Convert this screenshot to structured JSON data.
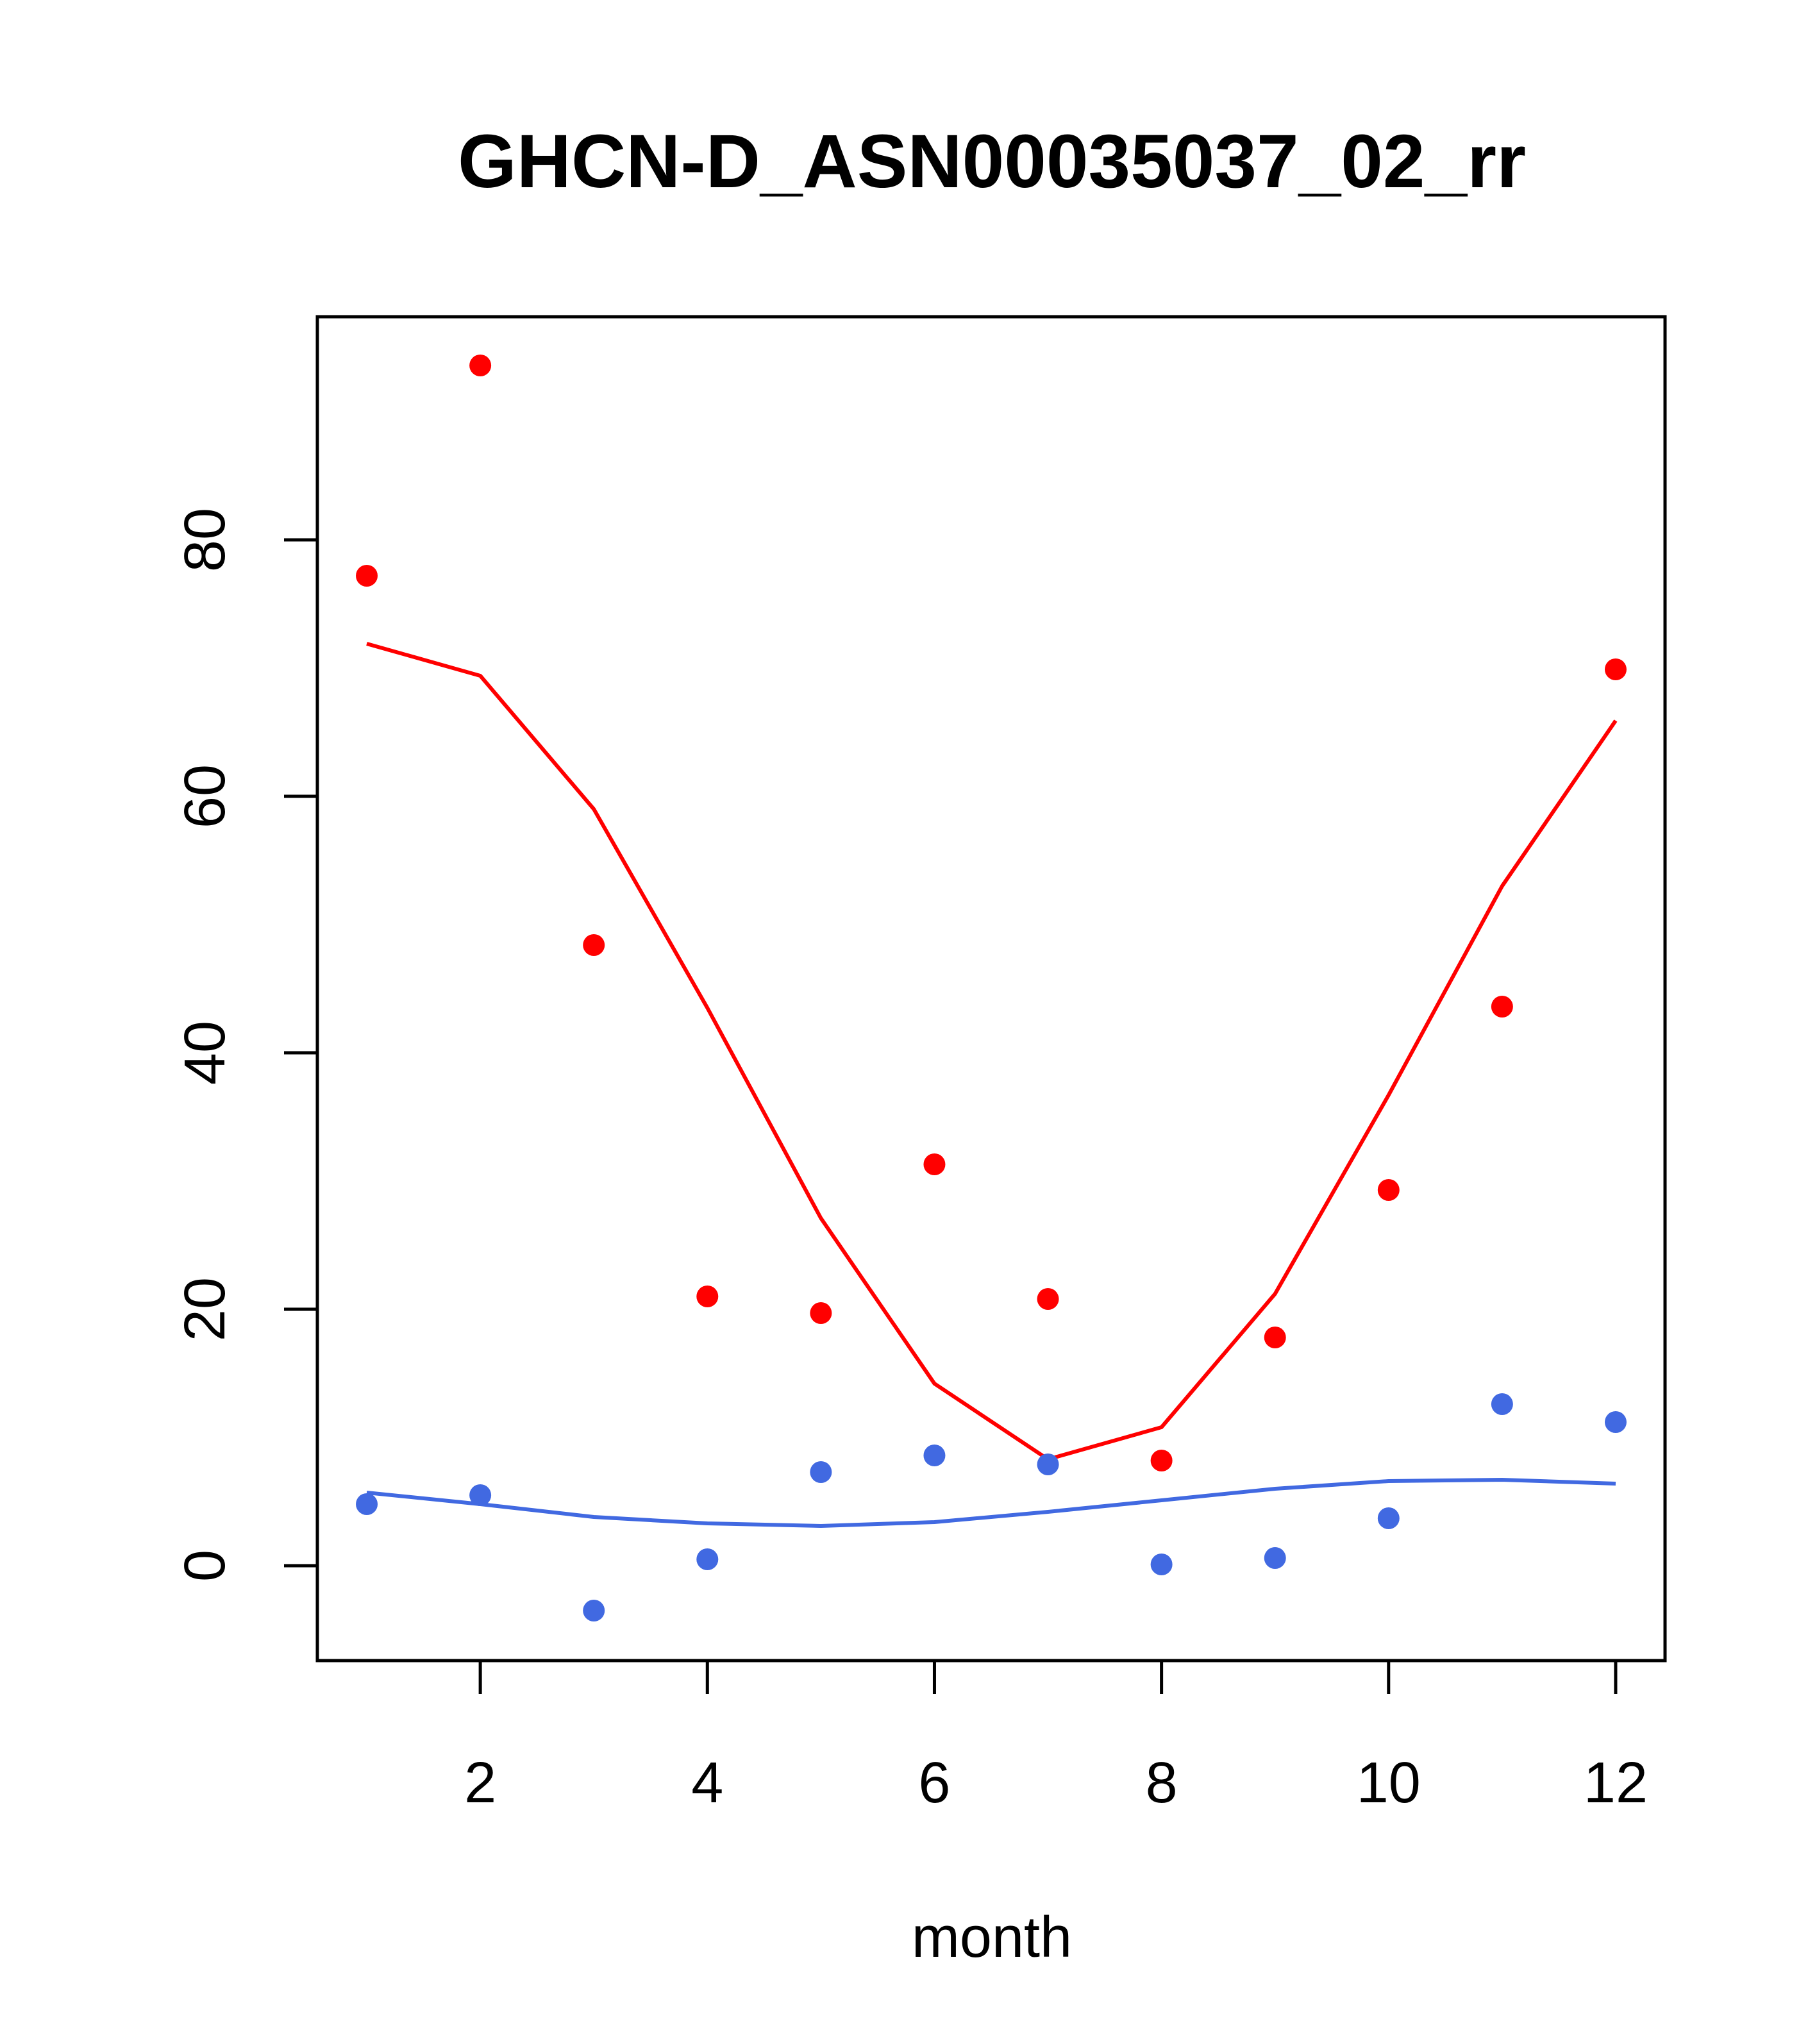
{
  "chart_data": {
    "type": "scatter",
    "title": "GHCN-D_ASN00035037_02_rr",
    "xlabel": "month",
    "ylabel": "",
    "xlim": [
      0.565,
      12.435
    ],
    "ylim": [
      -7.4,
      97.4
    ],
    "x_ticks": [
      2,
      4,
      6,
      8,
      10,
      12
    ],
    "y_ticks": [
      0,
      20,
      40,
      60,
      80
    ],
    "grid": false,
    "legend": "none",
    "x": [
      1,
      2,
      3,
      4,
      5,
      6,
      7,
      8,
      9,
      10,
      11,
      12
    ],
    "series": [
      {
        "color": "#ff0000",
        "points": [
          77.2,
          93.6,
          48.4,
          21.0,
          19.7,
          31.3,
          20.8,
          8.2,
          17.8,
          29.3,
          43.6,
          69.9
        ],
        "line": [
          71.9,
          69.4,
          59.0,
          43.5,
          27.1,
          14.2,
          8.3,
          10.8,
          21.2,
          36.7,
          53.0,
          65.9
        ]
      },
      {
        "color": "#4169e1",
        "points": [
          4.8,
          5.5,
          -3.5,
          0.5,
          7.3,
          8.6,
          7.9,
          0.1,
          0.6,
          3.7,
          12.6,
          11.2
        ],
        "line": [
          5.7,
          4.8,
          3.8,
          3.3,
          3.1,
          3.4,
          4.2,
          5.1,
          6.0,
          6.6,
          6.7,
          6.4
        ]
      }
    ]
  }
}
